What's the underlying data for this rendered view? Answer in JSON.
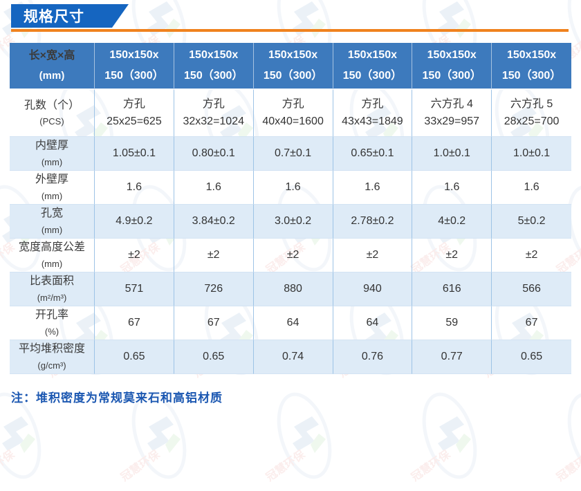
{
  "banner": {
    "title": "规格尺寸"
  },
  "colors": {
    "banner_blue": "#1565C0",
    "accent_orange": "#F0821E",
    "header_blue": "#3D7ABD",
    "row_alt_blue": "#DEEBF7",
    "grid_border": "#9DC3E6",
    "note_blue": "#1B57B1",
    "body_text": "#333333"
  },
  "watermark": {
    "text": "冠慧环保"
  },
  "table": {
    "header": {
      "label": "长×宽×高",
      "unit": "(mm)",
      "columns": [
        {
          "l1": "150x150x",
          "l2": "150（300）"
        },
        {
          "l1": "150x150x",
          "l2": "150（300）"
        },
        {
          "l1": "150x150x",
          "l2": "150（300）"
        },
        {
          "l1": "150x150x",
          "l2": "150（300）"
        },
        {
          "l1": "150x150x",
          "l2": "150（300）"
        },
        {
          "l1": "150x150x",
          "l2": "150（300）"
        }
      ]
    },
    "rows": [
      {
        "label": "孔数（个）",
        "unit": "(PCS)",
        "cells": [
          {
            "l1": "方孔",
            "l2": "25x25=625"
          },
          {
            "l1": "方孔",
            "l2": "32x32=1024"
          },
          {
            "l1": "方孔",
            "l2": "40x40=1600"
          },
          {
            "l1": "方孔",
            "l2": "43x43=1849"
          },
          {
            "l1": "六方孔 4",
            "l2": "33x29=957"
          },
          {
            "l1": "六方孔 5",
            "l2": "28x25=700"
          }
        ]
      },
      {
        "label": "内壁厚",
        "unit": "(mm)",
        "cells": [
          "1.05±0.1",
          "0.80±0.1",
          "0.7±0.1",
          "0.65±0.1",
          "1.0±0.1",
          "1.0±0.1"
        ]
      },
      {
        "label": "外壁厚",
        "unit": "(mm)",
        "cells": [
          "1.6",
          "1.6",
          "1.6",
          "1.6",
          "1.6",
          "1.6"
        ]
      },
      {
        "label": "孔宽",
        "unit": "(mm)",
        "cells": [
          "4.9±0.2",
          "3.84±0.2",
          "3.0±0.2",
          "2.78±0.2",
          "4±0.2",
          "5±0.2"
        ]
      },
      {
        "label": "宽度高度公差",
        "unit": "(mm)",
        "cells": [
          "±2",
          "±2",
          "±2",
          "±2",
          "±2",
          "±2"
        ]
      },
      {
        "label": "比表面积",
        "unit": "(m²/m³)",
        "cells": [
          "571",
          "726",
          "880",
          "940",
          "616",
          "566"
        ]
      },
      {
        "label": "开孔率",
        "unit": "(%)",
        "cells": [
          "67",
          "67",
          "64",
          "64",
          "59",
          "67"
        ]
      },
      {
        "label": "平均堆积密度",
        "unit": "(g/cm³)",
        "cells": [
          "0.65",
          "0.65",
          "0.74",
          "0.76",
          "0.77",
          "0.65"
        ]
      }
    ]
  },
  "note": {
    "text": "注：堆积密度为常规莫来石和高铝材质"
  }
}
